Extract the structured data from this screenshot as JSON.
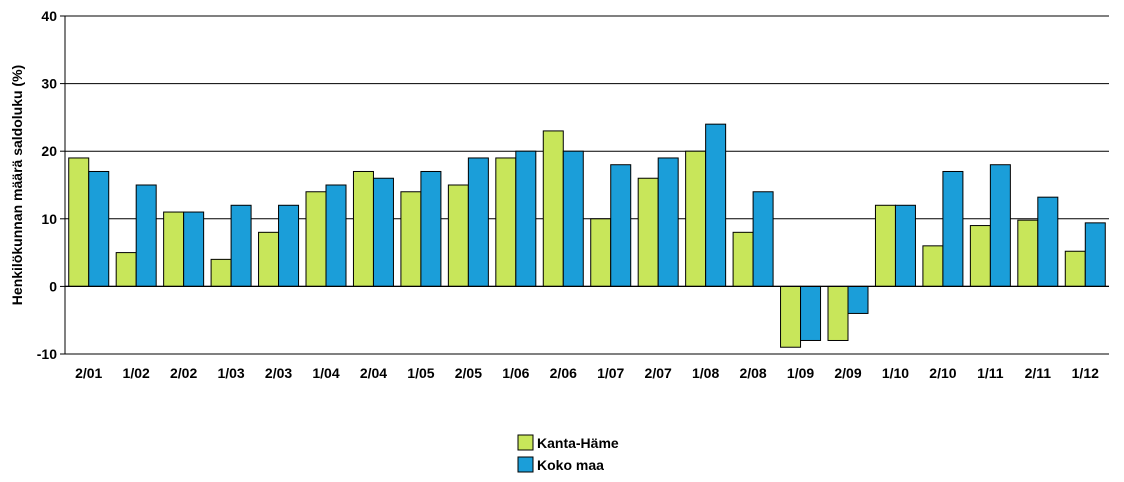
{
  "chart_data": {
    "type": "bar",
    "title": "",
    "xlabel": "",
    "ylabel": "Henkilökunnan määrä saldoluku (%)",
    "ylim": [
      -10,
      40
    ],
    "yticks": [
      -10,
      0,
      10,
      20,
      30,
      40
    ],
    "grid": true,
    "legend_position": "bottom-center",
    "categories": [
      "2/01",
      "1/02",
      "2/02",
      "1/03",
      "2/03",
      "1/04",
      "2/04",
      "1/05",
      "2/05",
      "1/06",
      "2/06",
      "1/07",
      "2/07",
      "1/08",
      "2/08",
      "1/09",
      "2/09",
      "1/10",
      "2/10",
      "1/11",
      "2/11",
      "1/12"
    ],
    "series": [
      {
        "name": "Kanta-Häme",
        "color": "#c8e65a",
        "values": [
          19,
          5,
          11,
          4,
          8,
          14,
          17,
          14,
          15,
          19,
          23,
          10,
          16,
          20,
          8,
          -9,
          -8,
          12,
          6,
          9,
          9.8,
          5.2
        ]
      },
      {
        "name": "Koko maa",
        "color": "#1b9ed9",
        "values": [
          17,
          15,
          11,
          12,
          12,
          15,
          16,
          17,
          19,
          20,
          20,
          18,
          19,
          24,
          14,
          -8,
          -4,
          12,
          17,
          18,
          13.2,
          9.4
        ]
      }
    ]
  }
}
